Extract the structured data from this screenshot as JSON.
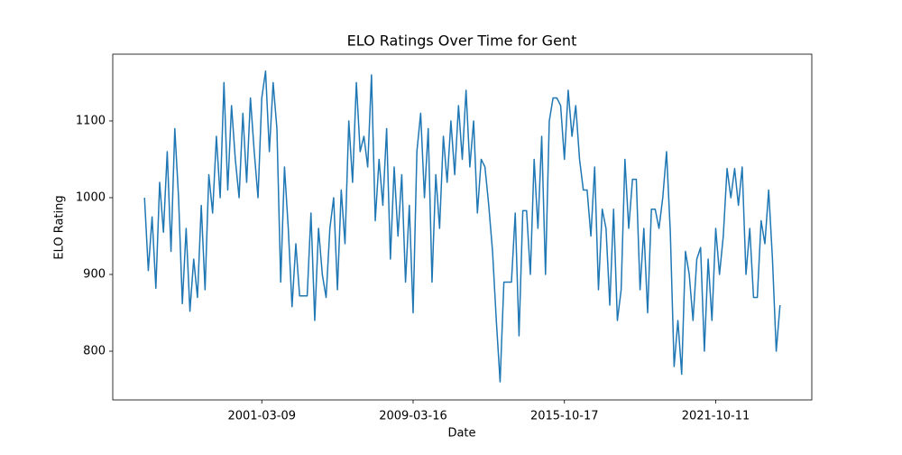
{
  "chart_data": {
    "type": "line",
    "title": "ELO Ratings Over Time for Gent",
    "x_label": "Date",
    "y_label": "ELO Rating",
    "color": "#1f77b4",
    "ylim": [
      736.5,
      1187
    ],
    "yticks": [
      800,
      900,
      1000,
      1100
    ],
    "grid": false,
    "categories": [
      null,
      null,
      null,
      null,
      null,
      null,
      null,
      null,
      null,
      null,
      null,
      null,
      null,
      null,
      null,
      null,
      null,
      null,
      null,
      null,
      null,
      null,
      null,
      null,
      null,
      null,
      null,
      null,
      null,
      null,
      null,
      "2001-03-09",
      null,
      null,
      null,
      null,
      null,
      null,
      null,
      null,
      null,
      null,
      null,
      null,
      null,
      null,
      null,
      null,
      null,
      null,
      null,
      null,
      null,
      null,
      null,
      null,
      null,
      null,
      null,
      null,
      null,
      null,
      null,
      null,
      null,
      null,
      null,
      null,
      null,
      null,
      null,
      "2009-03-16",
      null,
      null,
      null,
      null,
      null,
      null,
      null,
      null,
      null,
      null,
      null,
      null,
      null,
      null,
      null,
      null,
      null,
      null,
      null,
      null,
      null,
      null,
      null,
      null,
      null,
      null,
      null,
      null,
      null,
      null,
      null,
      null,
      null,
      null,
      null,
      null,
      null,
      null,
      null,
      "2015-10-17",
      null,
      null,
      null,
      null,
      null,
      null,
      null,
      null,
      null,
      null,
      null,
      null,
      null,
      null,
      null,
      null,
      null,
      null,
      null,
      null,
      null,
      null,
      null,
      null,
      null,
      null,
      null,
      null,
      null,
      null,
      null,
      null,
      null,
      null,
      null,
      null,
      null,
      null,
      null,
      "2021-10-11",
      null,
      null,
      null,
      null,
      null,
      null,
      null,
      null,
      null,
      null,
      null,
      null,
      null,
      null,
      null,
      null,
      null
    ],
    "values": [
      1000,
      905,
      975,
      882,
      1020,
      955,
      1060,
      930,
      1090,
      1000,
      862,
      960,
      852,
      920,
      870,
      990,
      880,
      1030,
      980,
      1080,
      1000,
      1150,
      1010,
      1120,
      1050,
      1000,
      1110,
      1020,
      1130,
      1060,
      1000,
      1130,
      1165,
      1060,
      1150,
      1090,
      890,
      1040,
      960,
      858,
      940,
      872,
      872,
      872,
      980,
      840,
      960,
      900,
      870,
      960,
      1000,
      880,
      1010,
      940,
      1100,
      1020,
      1150,
      1060,
      1080,
      1040,
      1160,
      970,
      1050,
      990,
      1090,
      920,
      1040,
      950,
      1030,
      890,
      990,
      850,
      1060,
      1110,
      1000,
      1090,
      890,
      1030,
      960,
      1080,
      1020,
      1100,
      1030,
      1120,
      1050,
      1140,
      1040,
      1100,
      980,
      1050,
      1040,
      990,
      930,
      840,
      760,
      890,
      890,
      890,
      980,
      820,
      983,
      983,
      900,
      1050,
      960,
      1080,
      900,
      1100,
      1130,
      1130,
      1120,
      1050,
      1140,
      1080,
      1120,
      1050,
      1010,
      1010,
      950,
      1040,
      880,
      985,
      960,
      860,
      985,
      840,
      880,
      1050,
      960,
      1024,
      1024,
      880,
      960,
      850,
      985,
      985,
      960,
      1000,
      1060,
      955,
      780,
      840,
      770,
      930,
      900,
      840,
      920,
      935,
      800,
      920,
      840,
      960,
      900,
      950,
      1038,
      1000,
      1038,
      990,
      1040,
      900,
      960,
      870,
      870,
      970,
      940,
      1010,
      920,
      800,
      860
    ]
  }
}
